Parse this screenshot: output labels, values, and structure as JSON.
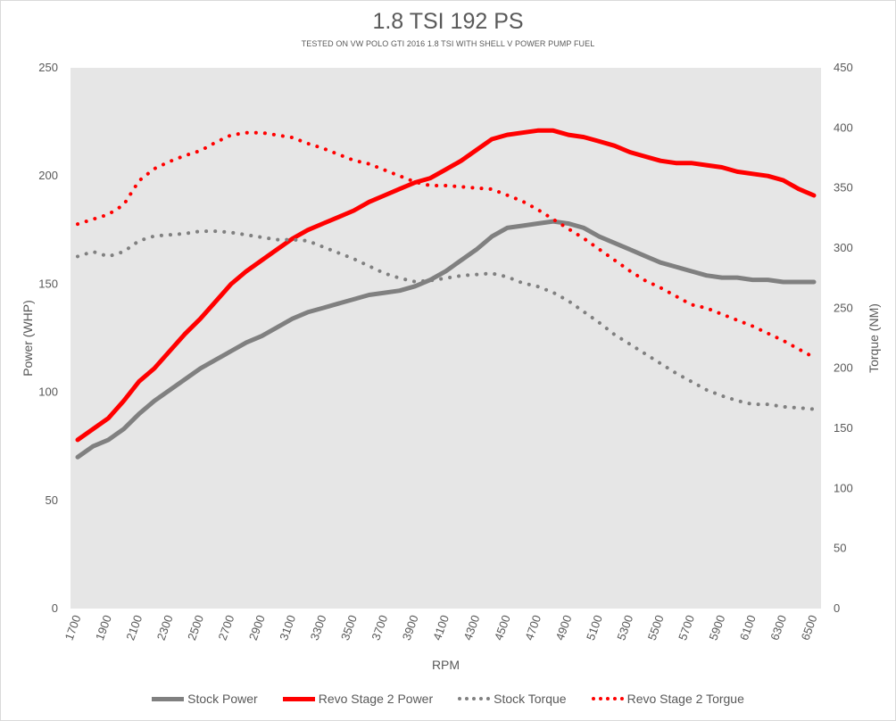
{
  "chart_data": {
    "type": "line",
    "title": "1.8 TSI 192 PS",
    "subtitle": "TESTED ON VW POLO GTI 2016 1.8 TSI WITH SHELL V POWER PUMP FUEL",
    "xlabel": "RPM",
    "ylabel_left": "Power (WHP)",
    "ylabel_right": "Torque (NM)",
    "ylim_left": [
      0,
      250
    ],
    "yticks_left": [
      0,
      50,
      100,
      150,
      200,
      250
    ],
    "ylim_right": [
      0,
      450
    ],
    "yticks_right": [
      0,
      50,
      100,
      150,
      200,
      250,
      300,
      350,
      400,
      450
    ],
    "x": [
      1700,
      1800,
      1900,
      2000,
      2100,
      2200,
      2300,
      2400,
      2500,
      2600,
      2700,
      2800,
      2900,
      3000,
      3100,
      3200,
      3300,
      3400,
      3500,
      3600,
      3700,
      3800,
      3900,
      4000,
      4100,
      4200,
      4300,
      4400,
      4500,
      4600,
      4700,
      4800,
      4900,
      5000,
      5100,
      5200,
      5300,
      5400,
      5500,
      5600,
      5700,
      5800,
      5900,
      6000,
      6100,
      6200,
      6300,
      6400,
      6500
    ],
    "xticks": [
      1700,
      1900,
      2100,
      2300,
      2500,
      2700,
      2900,
      3100,
      3300,
      3500,
      3700,
      3900,
      4100,
      4300,
      4500,
      4700,
      4900,
      5100,
      5300,
      5500,
      5700,
      5900,
      6100,
      6300,
      6500
    ],
    "plot_background": "#e6e6e6",
    "grid": false,
    "legend_position": "bottom",
    "series": [
      {
        "name": "Stock Power",
        "axis": "left",
        "color": "#808080",
        "style": "solid",
        "values": [
          70,
          75,
          78,
          83,
          90,
          96,
          101,
          106,
          111,
          115,
          119,
          123,
          126,
          130,
          134,
          137,
          139,
          141,
          143,
          145,
          146,
          147,
          149,
          152,
          156,
          161,
          166,
          172,
          176,
          177,
          178,
          179,
          178,
          176,
          172,
          169,
          166,
          163,
          160,
          158,
          156,
          154,
          153,
          153,
          152,
          152,
          151,
          151,
          151
        ]
      },
      {
        "name": "Revo Stage 2 Power",
        "axis": "left",
        "color": "#ff0000",
        "style": "solid",
        "values": [
          78,
          83,
          88,
          96,
          105,
          111,
          119,
          127,
          134,
          142,
          150,
          156,
          161,
          166,
          171,
          175,
          178,
          181,
          184,
          188,
          191,
          194,
          197,
          199,
          203,
          207,
          212,
          217,
          219,
          220,
          221,
          221,
          219,
          218,
          216,
          214,
          211,
          209,
          207,
          206,
          206,
          205,
          204,
          202,
          201,
          200,
          198,
          194,
          191
        ]
      },
      {
        "name": "Stock Torque",
        "axis": "right",
        "color": "#808080",
        "style": "dotted",
        "values": [
          293,
          297,
          293,
          297,
          306,
          310,
          311,
          312,
          314,
          314,
          313,
          311,
          309,
          307,
          307,
          306,
          301,
          296,
          291,
          285,
          279,
          275,
          272,
          273,
          275,
          277,
          278,
          279,
          276,
          271,
          268,
          263,
          256,
          247,
          238,
          228,
          220,
          212,
          204,
          196,
          189,
          182,
          177,
          173,
          170,
          170,
          168,
          167,
          166
        ]
      },
      {
        "name": "Revo Stage 2 Torgue",
        "axis": "right",
        "color": "#ff0000",
        "style": "dotted",
        "values": [
          320,
          324,
          328,
          336,
          356,
          366,
          372,
          377,
          381,
          388,
          394,
          396,
          396,
          394,
          392,
          387,
          383,
          378,
          373,
          370,
          365,
          360,
          355,
          352,
          352,
          351,
          350,
          349,
          344,
          339,
          332,
          324,
          316,
          308,
          299,
          290,
          281,
          273,
          267,
          260,
          253,
          250,
          245,
          240,
          235,
          229,
          223,
          216,
          209
        ]
      }
    ]
  }
}
